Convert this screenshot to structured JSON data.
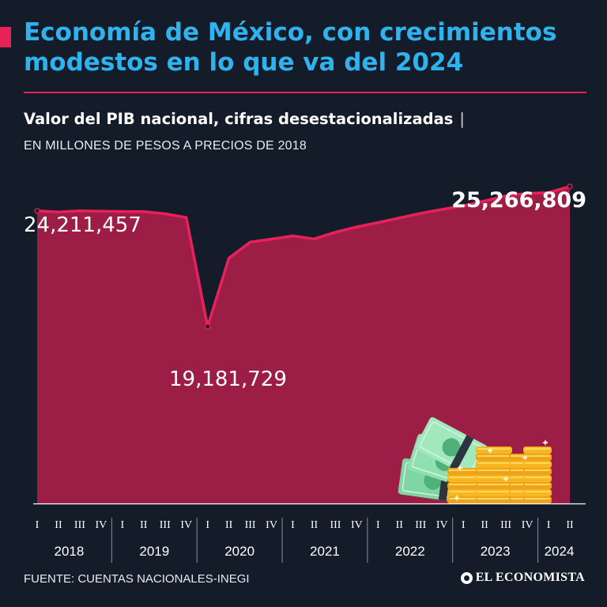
{
  "colors": {
    "background": "#141c2a",
    "accent": "#e8215a",
    "area_fill": "#9c1e46",
    "line": "#e8215a",
    "text": "#ffffff"
  },
  "header": {
    "title": "Economía de México, con crecimientos modestos en lo que va del 2024",
    "subtitle": "Valor del PIB nacional, cifras desestacionalizadas",
    "subtitle_separator": "|",
    "units": "EN MILLONES DE PESOS A PRECIOS DE 2018"
  },
  "footer": {
    "source": "FUENTE: CUENTAS NACIONALES-INEGI",
    "logo_text": "EL ECONOMISTA",
    "logo_icon": "el-economista-logo-icon"
  },
  "decoration": {
    "illustration": "money-bills-and-coins-icon"
  },
  "chart_data": {
    "type": "area",
    "title": "Valor del PIB nacional, cifras desestacionalizadas",
    "ylabel": "EN MILLONES DE PESOS A PRECIOS DE 2018",
    "ylim": [
      11500000,
      26500000
    ],
    "grid": false,
    "years": [
      "2018",
      "2019",
      "2020",
      "2021",
      "2022",
      "2023",
      "2024"
    ],
    "quarters_per_year": [
      4,
      4,
      4,
      4,
      4,
      4,
      2
    ],
    "quarter_labels": [
      "I",
      "II",
      "III",
      "IV"
    ],
    "x": [
      "2018-I",
      "2018-II",
      "2018-III",
      "2018-IV",
      "2019-I",
      "2019-II",
      "2019-III",
      "2019-IV",
      "2020-I",
      "2020-II",
      "2020-III",
      "2020-IV",
      "2021-I",
      "2021-II",
      "2021-III",
      "2021-IV",
      "2022-I",
      "2022-II",
      "2022-III",
      "2022-IV",
      "2023-I",
      "2023-II",
      "2023-III",
      "2023-IV",
      "2024-I",
      "2024-II"
    ],
    "series": [
      {
        "values": [
          24211457,
          24160000,
          24210000,
          24190000,
          24180000,
          24175000,
          24080000,
          23920000,
          19181729,
          22150000,
          22850000,
          22980000,
          23120000,
          22990000,
          23280000,
          23510000,
          23700000,
          23900000,
          24100000,
          24270000,
          24430000,
          24640000,
          24860000,
          24970000,
          25000000,
          25266809
        ]
      }
    ],
    "annotations": [
      {
        "index": 0,
        "text": "24,211,457",
        "style": "normal"
      },
      {
        "index": 8,
        "text": "19,181,729",
        "style": "normal"
      },
      {
        "index": 25,
        "text": "25,266,809",
        "style": "bold"
      }
    ]
  }
}
